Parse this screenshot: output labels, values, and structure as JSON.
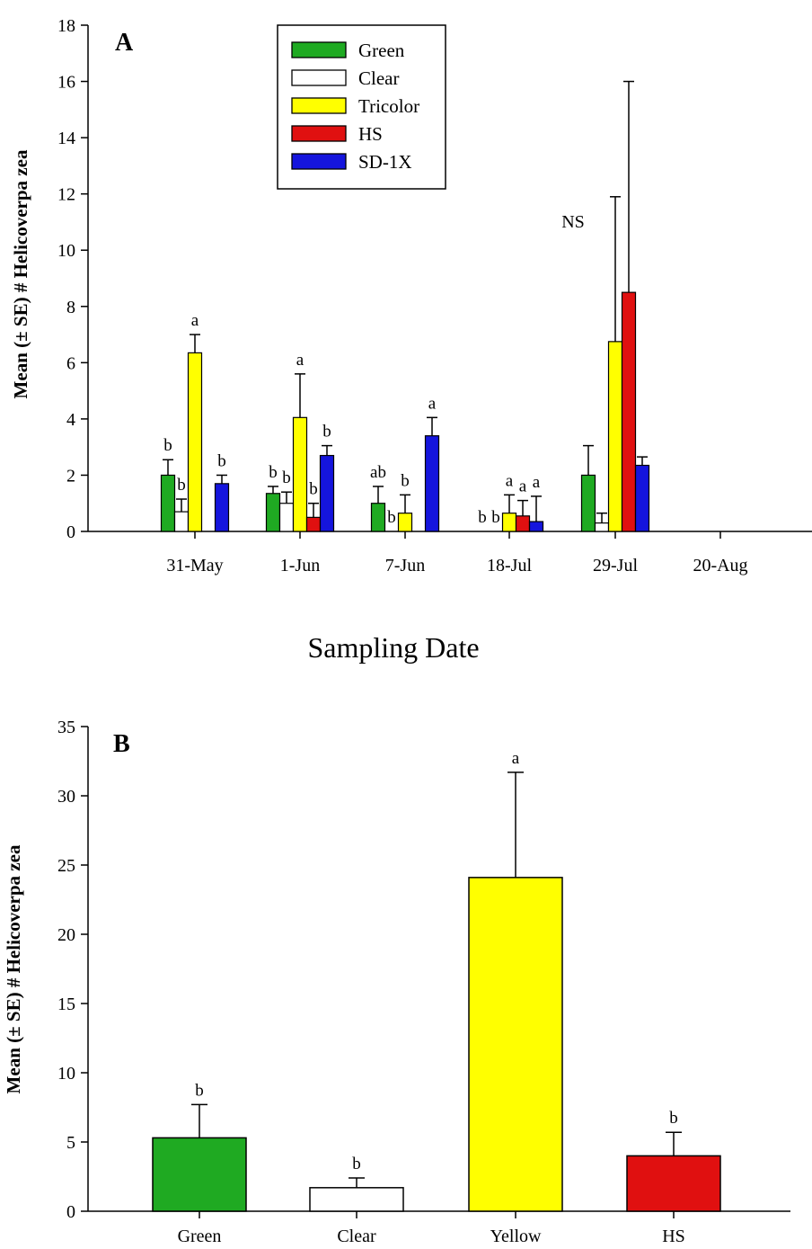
{
  "chart_data": [
    {
      "type": "bar",
      "panel_label": "A",
      "ylabel": "Mean (± SE) # Helicoverpa zea",
      "xlabel": "Sampling Date",
      "ylim": [
        0,
        18
      ],
      "yticks": [
        "0",
        "2",
        "4",
        "6",
        "8",
        "10",
        "12",
        "14",
        "16",
        "18"
      ],
      "categories": [
        "31-May",
        "1-Jun",
        "7-Jun",
        "18-Jul",
        "29-Jul",
        "20-Aug"
      ],
      "legend": {
        "position": "top-center"
      },
      "series": [
        {
          "name": "Green",
          "color": "#1faa22",
          "values": [
            2.0,
            1.35,
            1.0,
            0.0,
            2.0,
            0
          ],
          "errors": [
            0.55,
            0.25,
            0.6,
            0.0,
            1.05,
            0
          ],
          "letters": [
            "b",
            "b",
            "ab",
            "b",
            "",
            ""
          ]
        },
        {
          "name": "Clear",
          "color": "#ffffff",
          "values": [
            0.7,
            1.0,
            0.0,
            0.0,
            0.3,
            0
          ],
          "errors": [
            0.45,
            0.4,
            0.0,
            0.0,
            0.35,
            0
          ],
          "letters": [
            "b",
            "b",
            "b",
            "b",
            "",
            ""
          ]
        },
        {
          "name": "Tricolor",
          "color": "#ffff00",
          "values": [
            6.35,
            4.05,
            0.65,
            0.65,
            6.75,
            0
          ],
          "errors": [
            0.65,
            1.55,
            0.65,
            0.65,
            5.15,
            0
          ],
          "letters": [
            "a",
            "a",
            "b",
            "a",
            "",
            ""
          ]
        },
        {
          "name": "HS",
          "color": "#e01010",
          "values": [
            0.0,
            0.5,
            0.0,
            0.55,
            8.5,
            0
          ],
          "errors": [
            0.0,
            0.5,
            0.0,
            0.55,
            7.5,
            0
          ],
          "letters": [
            "",
            "b",
            "",
            "a",
            "",
            ""
          ]
        },
        {
          "name": "SD-1X",
          "color": "#1515dd",
          "values": [
            1.7,
            2.7,
            3.4,
            0.35,
            2.35,
            0
          ],
          "errors": [
            0.3,
            0.35,
            0.65,
            0.9,
            0.3,
            0
          ],
          "letters": [
            "b",
            "b",
            "a",
            "a",
            "",
            ""
          ]
        }
      ],
      "annotations": [
        {
          "text": "NS",
          "category": "29-Jul"
        }
      ]
    },
    {
      "type": "bar",
      "panel_label": "B",
      "ylabel": "Mean (± SE) # Helicoverpa zea",
      "xlabel": "",
      "ylim": [
        0,
        35
      ],
      "yticks": [
        "0",
        "5",
        "10",
        "15",
        "20",
        "25",
        "30",
        "35"
      ],
      "categories": [
        "Green",
        "Clear",
        "Yellow",
        "HS"
      ],
      "colors": [
        "#1faa22",
        "#ffffff",
        "#ffff00",
        "#e01010"
      ],
      "values": [
        5.3,
        1.7,
        24.1,
        4.0
      ],
      "errors": [
        2.4,
        0.7,
        7.6,
        1.7
      ],
      "letters": [
        "b",
        "b",
        "a",
        "b"
      ]
    }
  ]
}
